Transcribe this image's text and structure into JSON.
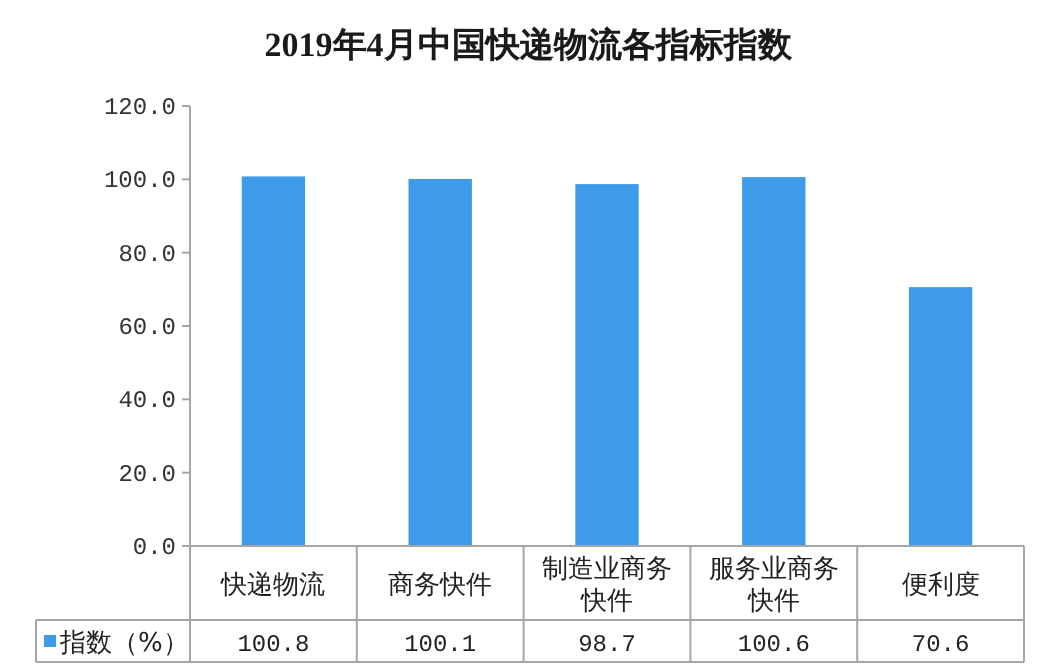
{
  "chart_data": {
    "type": "bar",
    "title": "2019年4月中国快递物流各指标指数",
    "categories": [
      "快递物流",
      "商务快件",
      "制造业商务快件",
      "服务业商务快件",
      "便利度"
    ],
    "series": [
      {
        "name": "指数（%）",
        "color": "#3d9be9",
        "values": [
          100.8,
          100.1,
          98.7,
          100.6,
          70.6
        ]
      }
    ],
    "ylim": [
      0,
      120
    ],
    "yticks": [
      {
        "value": 0,
        "label": "0.0"
      },
      {
        "value": 20,
        "label": "20.0"
      },
      {
        "value": 40,
        "label": "40.0"
      },
      {
        "value": 60,
        "label": "60.0"
      },
      {
        "value": 80,
        "label": "80.0"
      },
      {
        "value": 100,
        "label": "100.0"
      },
      {
        "value": 120,
        "label": "120.0"
      }
    ],
    "data_labels": true,
    "legend": "bottom"
  }
}
